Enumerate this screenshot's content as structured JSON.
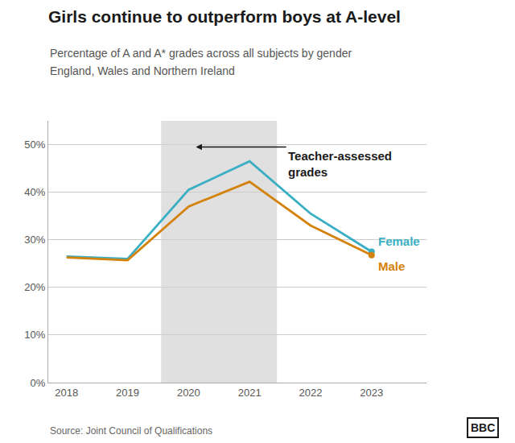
{
  "chart_data": {
    "type": "line",
    "title": "Girls continue to outperform boys at A-level",
    "subtitle": [
      "Percentage of A and A* grades across all subjects by gender",
      "England, Wales and Northern Ireland"
    ],
    "source": "Source: Joint Council of Qualifications",
    "credit": "BBC",
    "x": [
      2018,
      2019,
      2020,
      2021,
      2022,
      2023
    ],
    "series": [
      {
        "name": "Female",
        "color": "#3aafc4",
        "values": [
          26.5,
          26.0,
          40.5,
          46.5,
          35.5,
          27.5
        ]
      },
      {
        "name": "Male",
        "color": "#d4820a",
        "values": [
          26.3,
          25.7,
          37.0,
          42.2,
          33.0,
          26.8
        ]
      }
    ],
    "xlim": [
      2017.7,
      2023.9
    ],
    "xticks": [
      2018,
      2019,
      2020,
      2021,
      2022,
      2023
    ],
    "ylim": [
      0,
      55
    ],
    "yticks": [
      {
        "value": 0,
        "label": "0%"
      },
      {
        "value": 10,
        "label": "10%"
      },
      {
        "value": 20,
        "label": "20%"
      },
      {
        "value": 30,
        "label": "30%"
      },
      {
        "value": 40,
        "label": "40%"
      },
      {
        "value": 50,
        "label": "50%"
      }
    ],
    "grid": true,
    "annotations": [
      {
        "text": "Teacher-assessed\ngrades",
        "x_span": [
          2019.55,
          2021.45
        ],
        "color": "#e0e0e0"
      }
    ]
  }
}
